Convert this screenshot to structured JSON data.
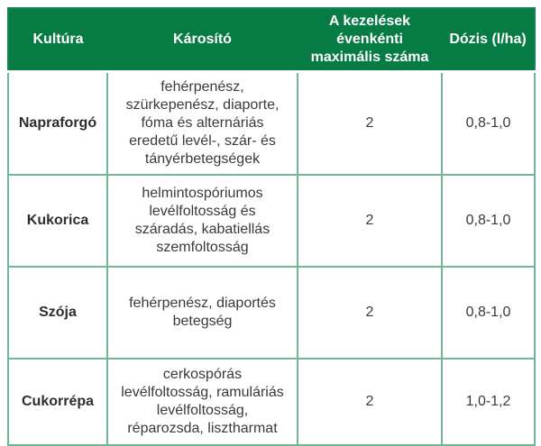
{
  "table": {
    "columns": [
      {
        "label": "Kultúra"
      },
      {
        "label": "Károsító"
      },
      {
        "label": "A kezelések évenkénti maximális száma"
      },
      {
        "label": "Dózis (l/ha)"
      }
    ],
    "rows": [
      {
        "kultura": "Napraforgó",
        "karosito": "fehérpenész, szürkepenész, diaporte, fóma és alternáriás eredetű levél-, szár- és tányérbetegségek",
        "max_kezelesek": "2",
        "dozis": "0,8-1,0"
      },
      {
        "kultura": "Kukorica",
        "karosito": "helmintospóriumos levélfoltosság és száradás, kabatiellás szemfoltosság",
        "max_kezelesek": "2",
        "dozis": "0,8-1,0"
      },
      {
        "kultura": "Szója",
        "karosito": "fehérpenész, diaportés betegség",
        "max_kezelesek": "2",
        "dozis": "0,8-1,0"
      },
      {
        "kultura": "Cukorrépa",
        "karosito": "cerkospórás levélfoltosság, ramuláriás levélfoltosság, réparozsda, lisztharmat",
        "max_kezelesek": "2",
        "dozis": "1,0-1,2"
      }
    ]
  },
  "colors": {
    "header_bg": "#077B44",
    "header_text": "#FFFFFF",
    "grid_line": "#6FB795",
    "outer_border": "#1A8355",
    "body_text": "#3A3A3A"
  }
}
